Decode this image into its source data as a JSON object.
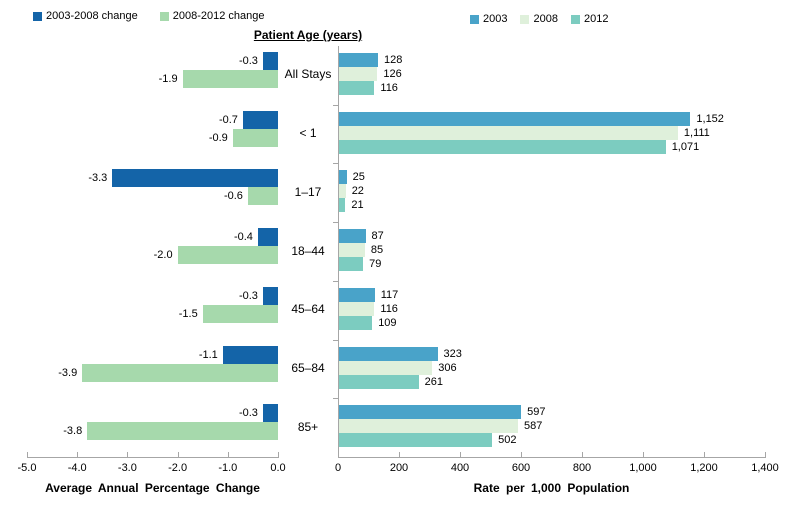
{
  "chart_data": {
    "type": "bar",
    "orientation": "horizontal",
    "categories": [
      "All Stays",
      "< 1",
      "1–17",
      "18–44",
      "45–64",
      "65–84",
      "85+"
    ],
    "category_axis_title": "Patient Age (years)",
    "colors": {
      "change_2003_2008": "#1464a8",
      "change_2008_2012": "#a6d9ac",
      "rate_2003": "#49a3c9",
      "rate_2008": "#dff0db",
      "rate_2012": "#7cccc0",
      "axis": "#a6a6a6",
      "text": "#000000"
    },
    "left_panel": {
      "title": "Average Annual Percentage Change",
      "xlim": [
        -5.0,
        0.0
      ],
      "tick_labels": [
        "-5.0",
        "-4.0",
        "-3.0",
        "-2.0",
        "-1.0",
        "0.0"
      ],
      "series": [
        {
          "name": "2003-2008 change",
          "color": "#1464a8",
          "values": [
            -0.3,
            -0.7,
            -3.3,
            -0.4,
            -0.3,
            -1.1,
            -0.3
          ],
          "labels": [
            "-0.3",
            "-0.7",
            "-3.3",
            "-0.4",
            "-0.3",
            "-1.1",
            "-0.3"
          ]
        },
        {
          "name": "2008-2012 change",
          "color": "#a6d9ac",
          "values": [
            -1.9,
            -0.9,
            -0.6,
            -2.0,
            -1.5,
            -3.9,
            -3.8
          ],
          "labels": [
            "-1.9",
            "-0.9",
            "-0.6",
            "-2.0",
            "-1.5",
            "-3.9",
            "-3.8"
          ]
        }
      ]
    },
    "right_panel": {
      "title": "Rate per 1,000 Population",
      "xlim": [
        0,
        1400
      ],
      "tick_labels": [
        "0",
        "200",
        "400",
        "600",
        "800",
        "1,000",
        "1,200",
        "1,400"
      ],
      "series": [
        {
          "name": "2003",
          "color": "#49a3c9",
          "values": [
            128,
            1152,
            25,
            87,
            117,
            323,
            597
          ],
          "labels": [
            "128",
            "1,152",
            "25",
            "87",
            "117",
            "323",
            "597"
          ]
        },
        {
          "name": "2008",
          "color": "#dff0db",
          "values": [
            126,
            1111,
            22,
            85,
            116,
            306,
            587
          ],
          "labels": [
            "126",
            "1,111",
            "22",
            "85",
            "116",
            "306",
            "587"
          ]
        },
        {
          "name": "2012",
          "color": "#7cccc0",
          "values": [
            116,
            1071,
            21,
            79,
            109,
            261,
            502
          ],
          "labels": [
            "116",
            "1,071",
            "21",
            "79",
            "109",
            "261",
            "502"
          ]
        }
      ]
    }
  }
}
